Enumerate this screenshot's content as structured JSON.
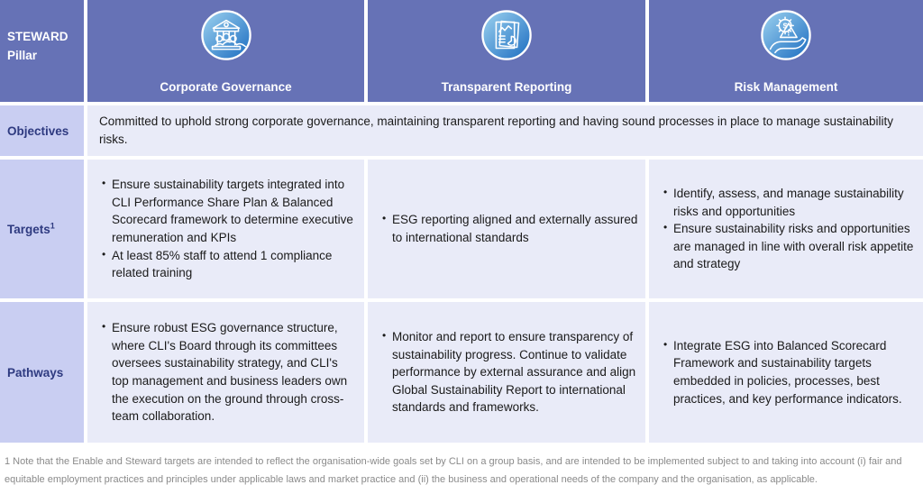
{
  "header": {
    "pillar_label": "STEWARD Pillar",
    "columns": [
      {
        "title": "Corporate Governance",
        "icon": "bank-building-people-icon"
      },
      {
        "title": "Transparent Reporting",
        "icon": "report-chart-document-icon"
      },
      {
        "title": "Risk Management",
        "icon": "hand-gear-warning-icon"
      }
    ]
  },
  "objectives": {
    "label": "Objectives",
    "text": "Committed to uphold strong corporate governance, maintaining transparent reporting and having sound processes in place to manage sustainability risks."
  },
  "targets": {
    "label": "Targets",
    "footnote_marker": "1",
    "governance": [
      "Ensure sustainability targets integrated into CLI Performance Share Plan & Balanced Scorecard framework to determine executive remuneration and KPIs",
      "At least 85% staff to attend 1 compliance related training"
    ],
    "reporting": [
      "ESG reporting aligned and externally assured to international standards"
    ],
    "risk": [
      "Identify, assess, and manage sustainability risks and opportunities",
      "Ensure sustainability risks and opportunities are managed in line with overall risk appetite and strategy"
    ]
  },
  "pathways": {
    "label": "Pathways",
    "governance": [
      "Ensure robust ESG governance structure, where CLI's Board through its committees oversees sustainability strategy, and CLI's top management and business leaders own the execution on the ground through cross-team collaboration."
    ],
    "reporting": [
      "Monitor and report to ensure transparency of sustainability progress. Continue to validate performance by external assurance and align Global Sustainability Report to international standards and frameworks."
    ],
    "risk": [
      "Integrate ESG into Balanced Scorecard Framework and sustainability targets embedded in policies, processes, best practices, and key performance indicators."
    ]
  },
  "footnote": "1 Note that the Enable and Steward targets are intended to reflect the organisation-wide goals set by CLI on a group basis, and are intended to be implemented subject to and taking into account (i) fair and equitable employment practices and principles under applicable laws and market practice and (ii) the business and operational needs of the company and the organisation, as applicable.",
  "colors": {
    "header_bg": "#6672b6",
    "label_bg": "#c9cef2",
    "cell_bg": "#e9ebf8",
    "label_text": "#2e3a80",
    "icon_blue_light": "#9ed3f0",
    "icon_blue_dark": "#1b6cc0"
  }
}
